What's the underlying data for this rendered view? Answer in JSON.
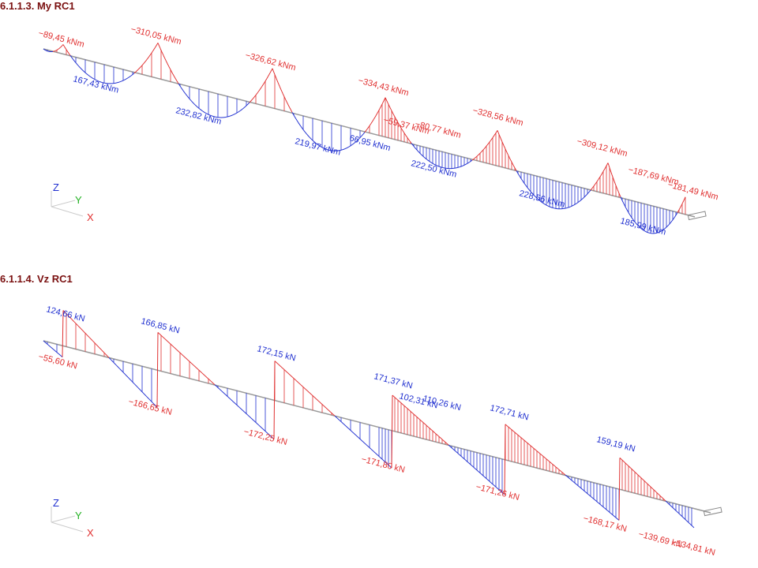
{
  "sections": [
    {
      "title": "6.1.1.3. My RC1",
      "labels": [
        "−89,45 kNm",
        "−310,05 kNm",
        "167,43 kNm",
        "232,82 kNm",
        "−326,62 kNm",
        "219,97 kNm",
        "−334,43 kNm",
        "66,95 kNm",
        "−59,37 kNm",
        "−80,77 kNm",
        "222,50 kNm",
        "−328,56 kNm",
        "228,56 kNm",
        "−309,12 kNm",
        "−187,69 kNm",
        "−181,49 kNm",
        "185,99 kNm"
      ],
      "axes": [
        "Z",
        "Y",
        "X"
      ]
    },
    {
      "title": "6.1.1.4. Vz RC1",
      "labels": [
        "124,66 kN",
        "−55,60 kN",
        "166,85 kN",
        "−166,65 kN",
        "172,15 kN",
        "−172,25 kN",
        "171,37 kN",
        "102,31 kN",
        "110,26 kN",
        "−171,80 kN",
        "172,71 kN",
        "−171,26 kN",
        "159,19 kN",
        "−168,17 kN",
        "−139,69 kN",
        "−134,81 kN"
      ],
      "axes": [
        "Z",
        "Y",
        "X"
      ]
    }
  ]
}
